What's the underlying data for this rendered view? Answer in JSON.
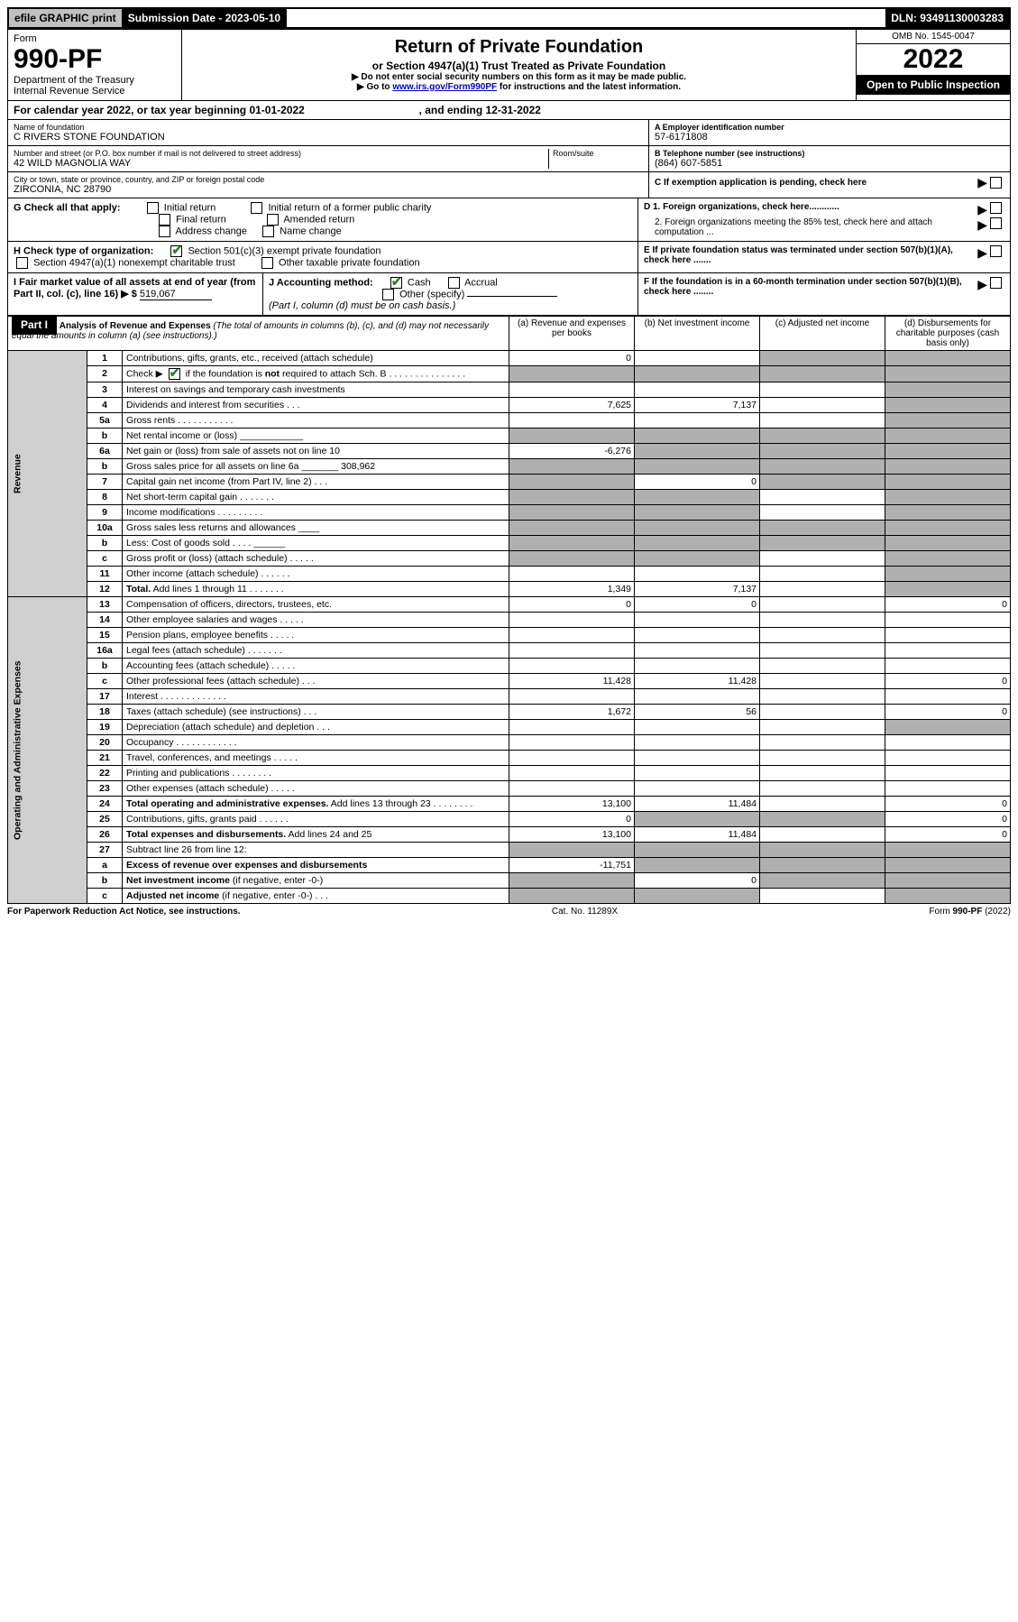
{
  "topbar": {
    "graphic": "efile GRAPHIC print",
    "submission": "Submission Date - 2023-05-10",
    "dln": "DLN: 93491130003283"
  },
  "header": {
    "form_label": "Form",
    "form_no": "990-PF",
    "dept": "Department of the Treasury",
    "irs": "Internal Revenue Service",
    "title": "Return of Private Foundation",
    "subtitle": "or Section 4947(a)(1) Trust Treated as Private Foundation",
    "note1": "▶ Do not enter social security numbers on this form as it may be made public.",
    "note2_pre": "▶ Go to ",
    "note2_link": "www.irs.gov/Form990PF",
    "note2_post": " for instructions and the latest information.",
    "omb": "OMB No. 1545-0047",
    "year": "2022",
    "open": "Open to Public Inspection"
  },
  "cal": {
    "text_a": "For calendar year 2022, or tax year beginning ",
    "begin": "01-01-2022",
    "text_b": " , and ending ",
    "end": "12-31-2022"
  },
  "entity": {
    "name_label": "Name of foundation",
    "name": "C RIVERS STONE FOUNDATION",
    "addr_label": "Number and street (or P.O. box number if mail is not delivered to street address)",
    "addr": "42 WILD MAGNOLIA WAY",
    "room_label": "Room/suite",
    "city_label": "City or town, state or province, country, and ZIP or foreign postal code",
    "city": "ZIRCONIA, NC  28790",
    "ein_label": "A Employer identification number",
    "ein": "57-6171808",
    "tel_label": "B Telephone number (see instructions)",
    "tel": "(864) 607-5851",
    "c_label": "C If exemption application is pending, check here"
  },
  "g": {
    "label": "G Check all that apply:",
    "opts": [
      "Initial return",
      "Final return",
      "Address change",
      "Initial return of a former public charity",
      "Amended return",
      "Name change"
    ]
  },
  "d": {
    "d1": "D 1. Foreign organizations, check here............",
    "d2": "2. Foreign organizations meeting the 85% test, check here and attach computation ..."
  },
  "h": {
    "label": "H Check type of organization:",
    "opt1": "Section 501(c)(3) exempt private foundation",
    "opt2": "Section 4947(a)(1) nonexempt charitable trust",
    "opt3": "Other taxable private foundation"
  },
  "e": "E If private foundation status was terminated under section 507(b)(1)(A), check here .......",
  "i": {
    "label": "I Fair market value of all assets at end of year (from Part II, col. (c), line 16) ▶ $",
    "val": "519,067"
  },
  "j": {
    "label": "J Accounting method:",
    "cash": "Cash",
    "accrual": "Accrual",
    "other": "Other (specify)",
    "note": "(Part I, column (d) must be on cash basis.)"
  },
  "f": "F If the foundation is in a 60-month termination under section 507(b)(1)(B), check here ........",
  "part1": {
    "label": "Part I",
    "title": "Analysis of Revenue and Expenses",
    "note": "(The total of amounts in columns (b), (c), and (d) may not necessarily equal the amounts in column (a) (see instructions).)",
    "cols": {
      "a": "(a) Revenue and expenses per books",
      "b": "(b) Net investment income",
      "c": "(c) Adjusted net income",
      "d": "(d) Disbursements for charitable purposes (cash basis only)"
    }
  },
  "sidelabels": {
    "rev": "Revenue",
    "ops": "Operating and Administrative Expenses"
  },
  "rows": [
    {
      "n": "1",
      "desc": "Contributions, gifts, grants, etc., received (attach schedule)",
      "a": "0",
      "b": "",
      "c": "shade",
      "d": "shade"
    },
    {
      "n": "2",
      "desc": "Check ▶ __CB__ if the foundation is <b>not</b> required to attach Sch. B   .   .   .   .   .   .   .   .   .   .   .   .   .   .   .",
      "a": "shade",
      "b": "shade",
      "c": "shade",
      "d": "shade",
      "checked": true
    },
    {
      "n": "3",
      "desc": "Interest on savings and temporary cash investments",
      "a": "",
      "b": "",
      "c": "",
      "d": "shade"
    },
    {
      "n": "4",
      "desc": "Dividends and interest from securities   .   .   .",
      "a": "7,625",
      "b": "7,137",
      "c": "",
      "d": "shade"
    },
    {
      "n": "5a",
      "desc": "Gross rents   .   .   .   .   .   .   .   .   .   .   .",
      "a": "",
      "b": "",
      "c": "",
      "d": "shade"
    },
    {
      "n": "b",
      "desc": "Net rental income or (loss)   ____________",
      "a": "shade",
      "b": "shade",
      "c": "shade",
      "d": "shade"
    },
    {
      "n": "6a",
      "desc": "Net gain or (loss) from sale of assets not on line 10",
      "a": "-6,276",
      "b": "shade",
      "c": "shade",
      "d": "shade"
    },
    {
      "n": "b",
      "desc": "Gross sales price for all assets on line 6a _______ 308,962",
      "a": "shade",
      "b": "shade",
      "c": "shade",
      "d": "shade"
    },
    {
      "n": "7",
      "desc": "Capital gain net income (from Part IV, line 2)   .   .   .",
      "a": "shade",
      "b": "0",
      "c": "shade",
      "d": "shade"
    },
    {
      "n": "8",
      "desc": "Net short-term capital gain   .   .   .   .   .   .   .",
      "a": "shade",
      "b": "shade",
      "c": "",
      "d": "shade"
    },
    {
      "n": "9",
      "desc": "Income modifications   .   .   .   .   .   .   .   .   .",
      "a": "shade",
      "b": "shade",
      "c": "",
      "d": "shade"
    },
    {
      "n": "10a",
      "desc": "Gross sales less returns and allowances   ____",
      "a": "shade",
      "b": "shade",
      "c": "shade",
      "d": "shade"
    },
    {
      "n": "b",
      "desc": "Less: Cost of goods sold   .   .   .   .   ______",
      "a": "shade",
      "b": "shade",
      "c": "shade",
      "d": "shade"
    },
    {
      "n": "c",
      "desc": "Gross profit or (loss) (attach schedule)   .   .   .   .   .",
      "a": "shade",
      "b": "shade",
      "c": "",
      "d": "shade"
    },
    {
      "n": "11",
      "desc": "Other income (attach schedule)   .   .   .   .   .   .",
      "a": "",
      "b": "",
      "c": "",
      "d": "shade"
    },
    {
      "n": "12",
      "desc": "<b>Total.</b> Add lines 1 through 11   .   .   .   .   .   .   .",
      "a": "1,349",
      "b": "7,137",
      "c": "",
      "d": "shade"
    }
  ],
  "exp_rows": [
    {
      "n": "13",
      "desc": "Compensation of officers, directors, trustees, etc.",
      "a": "0",
      "b": "0",
      "c": "",
      "d": "0"
    },
    {
      "n": "14",
      "desc": "Other employee salaries and wages   .   .   .   .   .",
      "a": "",
      "b": "",
      "c": "",
      "d": ""
    },
    {
      "n": "15",
      "desc": "Pension plans, employee benefits   .   .   .   .   .",
      "a": "",
      "b": "",
      "c": "",
      "d": ""
    },
    {
      "n": "16a",
      "desc": "Legal fees (attach schedule)   .   .   .   .   .   .   .",
      "a": "",
      "b": "",
      "c": "",
      "d": ""
    },
    {
      "n": "b",
      "desc": "Accounting fees (attach schedule)   .   .   .   .   .",
      "a": "",
      "b": "",
      "c": "",
      "d": ""
    },
    {
      "n": "c",
      "desc": "Other professional fees (attach schedule)   .   .   .",
      "a": "11,428",
      "b": "11,428",
      "c": "",
      "d": "0"
    },
    {
      "n": "17",
      "desc": "Interest   .   .   .   .   .   .   .   .   .   .   .   .   .",
      "a": "",
      "b": "",
      "c": "",
      "d": ""
    },
    {
      "n": "18",
      "desc": "Taxes (attach schedule) (see instructions)   .   .   .",
      "a": "1,672",
      "b": "56",
      "c": "",
      "d": "0"
    },
    {
      "n": "19",
      "desc": "Depreciation (attach schedule) and depletion   .   .   .",
      "a": "",
      "b": "",
      "c": "",
      "d": "shade"
    },
    {
      "n": "20",
      "desc": "Occupancy   .   .   .   .   .   .   .   .   .   .   .   .",
      "a": "",
      "b": "",
      "c": "",
      "d": ""
    },
    {
      "n": "21",
      "desc": "Travel, conferences, and meetings   .   .   .   .   .",
      "a": "",
      "b": "",
      "c": "",
      "d": ""
    },
    {
      "n": "22",
      "desc": "Printing and publications   .   .   .   .   .   .   .   .",
      "a": "",
      "b": "",
      "c": "",
      "d": ""
    },
    {
      "n": "23",
      "desc": "Other expenses (attach schedule)   .   .   .   .   .",
      "a": "",
      "b": "",
      "c": "",
      "d": ""
    },
    {
      "n": "24",
      "desc": "<b>Total operating and administrative expenses.</b> Add lines 13 through 23   .   .   .   .   .   .   .   .",
      "a": "13,100",
      "b": "11,484",
      "c": "",
      "d": "0"
    },
    {
      "n": "25",
      "desc": "Contributions, gifts, grants paid   .   .   .   .   .   .",
      "a": "0",
      "b": "shade",
      "c": "shade",
      "d": "0"
    },
    {
      "n": "26",
      "desc": "<b>Total expenses and disbursements.</b> Add lines 24 and 25",
      "a": "13,100",
      "b": "11,484",
      "c": "",
      "d": "0"
    },
    {
      "n": "27",
      "desc": "Subtract line 26 from line 12:",
      "a": "shade",
      "b": "shade",
      "c": "shade",
      "d": "shade"
    },
    {
      "n": "a",
      "desc": "<b>Excess of revenue over expenses and disbursements</b>",
      "a": "-11,751",
      "b": "shade",
      "c": "shade",
      "d": "shade"
    },
    {
      "n": "b",
      "desc": "<b>Net investment income</b> (if negative, enter -0-)",
      "a": "shade",
      "b": "0",
      "c": "shade",
      "d": "shade"
    },
    {
      "n": "c",
      "desc": "<b>Adjusted net income</b> (if negative, enter -0-)   .   .   .",
      "a": "shade",
      "b": "shade",
      "c": "",
      "d": "shade"
    }
  ],
  "footer": {
    "left": "For Paperwork Reduction Act Notice, see instructions.",
    "mid": "Cat. No. 11289X",
    "right": "Form 990-PF (2022)"
  }
}
